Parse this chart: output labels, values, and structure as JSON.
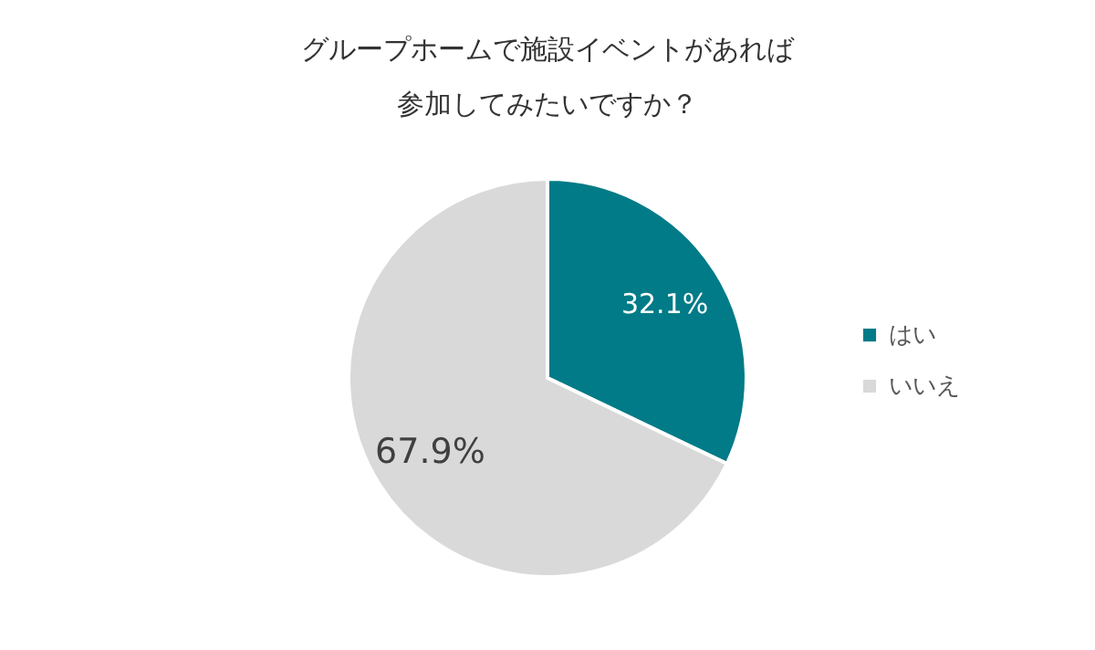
{
  "chart_data": {
    "type": "pie",
    "title": "グループホームで施設イベントがあれば参加してみたいですか？",
    "categories": [
      "はい",
      "いいえ"
    ],
    "values": [
      32.1,
      67.9
    ],
    "colors": [
      "#007b87",
      "#d9d9d9"
    ],
    "value_labels": [
      "32.1%",
      "67.9%"
    ],
    "legend": "right"
  }
}
